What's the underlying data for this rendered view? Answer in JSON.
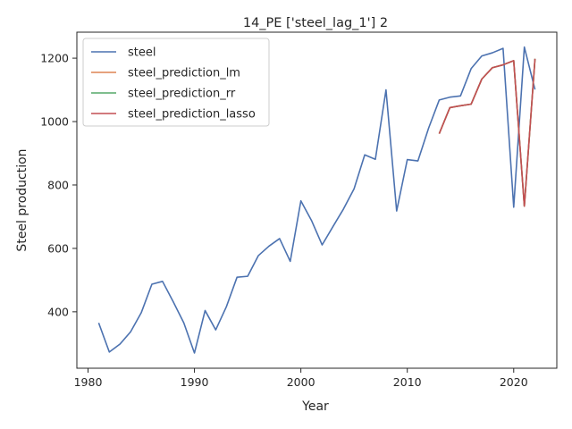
{
  "chart_data": {
    "type": "line",
    "title": "14_PE ['steel_lag_1'] 2",
    "xlabel": "Year",
    "ylabel": "Steel production",
    "xlim": [
      1978.95,
      2024.05
    ],
    "ylim": [
      222,
      1282
    ],
    "xticks": [
      1980,
      1990,
      2000,
      2010,
      2020
    ],
    "yticks": [
      400,
      600,
      800,
      1000,
      1200
    ],
    "grid": false,
    "legend": "top-left",
    "series": [
      {
        "name": "steel",
        "color": "#4c72b0",
        "x": [
          1981,
          1982,
          1983,
          1984,
          1985,
          1986,
          1987,
          1988,
          1989,
          1990,
          1991,
          1992,
          1993,
          1994,
          1995,
          1996,
          1997,
          1998,
          1999,
          2000,
          2001,
          2002,
          2003,
          2004,
          2005,
          2006,
          2007,
          2008,
          2009,
          2010,
          2011,
          2012,
          2013,
          2014,
          2015,
          2016,
          2017,
          2018,
          2019,
          2020,
          2021,
          2022
        ],
        "y": [
          365,
          273,
          298,
          337,
          397,
          487,
          496,
          432,
          365,
          270,
          404,
          343,
          416,
          509,
          512,
          577,
          607,
          631,
          559,
          750,
          688,
          611,
          668,
          724,
          788,
          895,
          881,
          1100,
          718,
          880,
          876,
          979,
          1068,
          1077,
          1081,
          1167,
          1207,
          1217,
          1231,
          730,
          1235,
          1101
        ]
      },
      {
        "name": "steel_prediction_lm",
        "color": "#dd8452",
        "x": [
          2013,
          2014,
          2015,
          2016,
          2017,
          2018,
          2019,
          2020,
          2021,
          2022
        ],
        "y": [
          962,
          1044,
          1050,
          1055,
          1134,
          1170,
          1179,
          1192,
          733,
          1198
        ]
      },
      {
        "name": "steel_prediction_rr",
        "color": "#55a868",
        "x": [
          2013,
          2014,
          2015,
          2016,
          2017,
          2018,
          2019,
          2020,
          2021,
          2022
        ],
        "y": [
          962,
          1044,
          1050,
          1055,
          1134,
          1170,
          1179,
          1192,
          733,
          1198
        ]
      },
      {
        "name": "steel_prediction_lasso",
        "color": "#c44e52",
        "x": [
          2013,
          2014,
          2015,
          2016,
          2017,
          2018,
          2019,
          2020,
          2021,
          2022
        ],
        "y": [
          962,
          1044,
          1050,
          1055,
          1134,
          1170,
          1179,
          1192,
          733,
          1198
        ]
      }
    ]
  }
}
